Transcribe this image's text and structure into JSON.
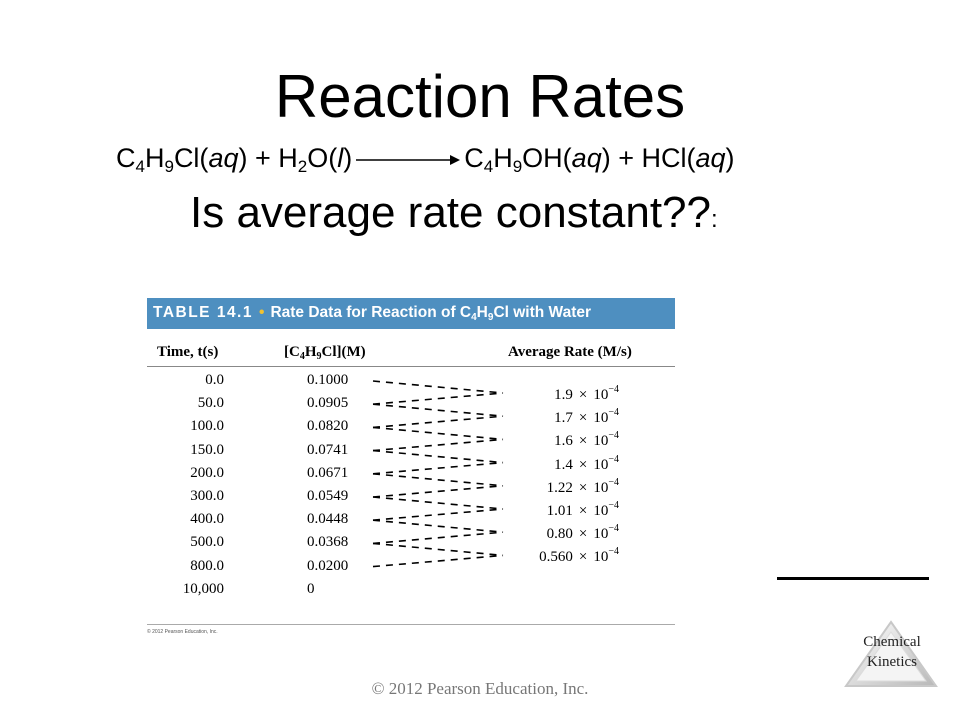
{
  "slide": {
    "title": "Reaction Rates",
    "equation": {
      "reactant1": [
        "C",
        "4",
        "H",
        "9",
        "Cl(",
        "aq",
        ")"
      ],
      "plus1": " + ",
      "reactant2": [
        "H",
        "2",
        "O(",
        "l",
        ")"
      ],
      "product1": [
        "C",
        "4",
        "H",
        "9",
        "OH(",
        "aq",
        ")"
      ],
      "plus2": " + ",
      "product2": [
        "HCl(",
        "aq",
        ")"
      ]
    },
    "question": "Is average rate constant??",
    "question_suffix": ":",
    "footer": {
      "copyright": "© 2012 Pearson Education, Inc.",
      "logo_line1": "Chemical",
      "logo_line2": "Kinetics"
    }
  },
  "table": {
    "number": "TABLE 14.1",
    "caption_prefix": "Rate Data for Reaction of C",
    "caption_sub1": "4",
    "caption_mid": "H",
    "caption_sub2": "9",
    "caption_suffix": "Cl with Water",
    "columns": {
      "time": "Time, t(s)",
      "conc_prefix": "[C",
      "conc_sub1": "4",
      "conc_mid": "H",
      "conc_sub2": "9",
      "conc_suffix": "Cl](M)",
      "rate": "Average Rate (M/s)"
    },
    "rows": [
      {
        "time": "0.0",
        "conc": "0.1000"
      },
      {
        "time": "50.0",
        "conc": "0.0905"
      },
      {
        "time": "100.0",
        "conc": "0.0820"
      },
      {
        "time": "150.0",
        "conc": "0.0741"
      },
      {
        "time": "200.0",
        "conc": "0.0671"
      },
      {
        "time": "300.0",
        "conc": "0.0549"
      },
      {
        "time": "400.0",
        "conc": "0.0448"
      },
      {
        "time": "500.0",
        "conc": "0.0368"
      },
      {
        "time": "800.0",
        "conc": "0.0200"
      },
      {
        "time": "10,000",
        "conc": "0"
      }
    ],
    "rates": [
      {
        "mantissa": "1.9",
        "exp": "−4"
      },
      {
        "mantissa": "1.7",
        "exp": "−4"
      },
      {
        "mantissa": "1.6",
        "exp": "−4"
      },
      {
        "mantissa": "1.4",
        "exp": "−4"
      },
      {
        "mantissa": "1.22",
        "exp": "−4"
      },
      {
        "mantissa": "1.01",
        "exp": "−4"
      },
      {
        "mantissa": "0.80",
        "exp": "−4"
      },
      {
        "mantissa": "0.560",
        "exp": "−4"
      }
    ],
    "rate_times": "×",
    "rate_base": "10",
    "footnote": "© 2012 Pearson Education, Inc."
  },
  "colors": {
    "table_header_bg": "#4e8fc0",
    "table_header_dot": "#f2c230"
  }
}
